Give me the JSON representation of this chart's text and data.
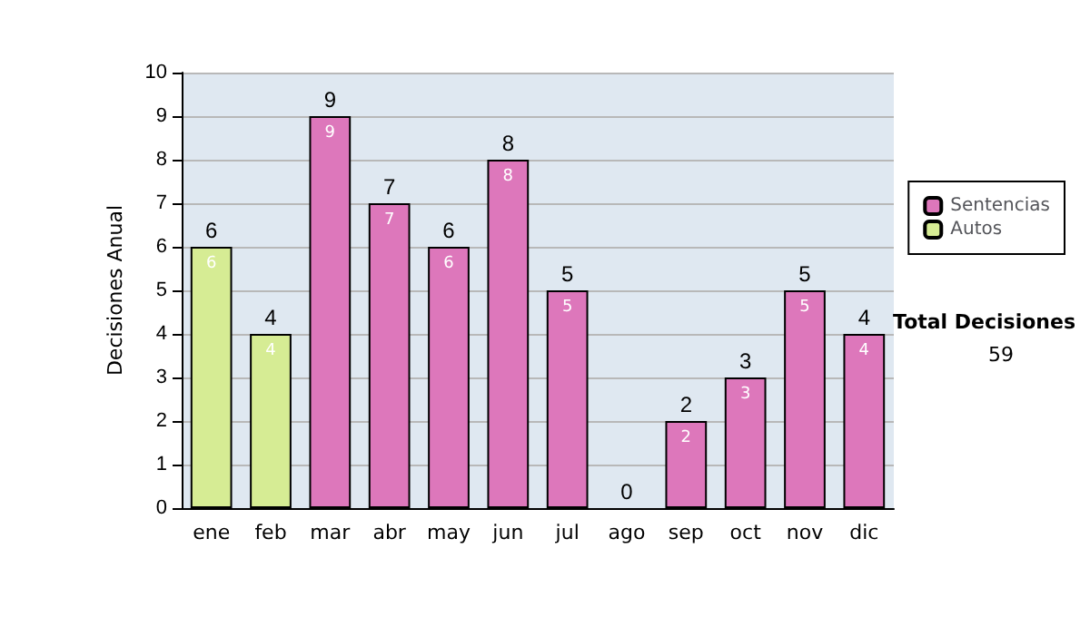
{
  "chart_data": {
    "type": "bar",
    "ylabel": "Decisiones Anual",
    "categories": [
      "ene",
      "feb",
      "mar",
      "abr",
      "may",
      "jun",
      "jul",
      "ago",
      "sep",
      "oct",
      "nov",
      "dic"
    ],
    "series": [
      {
        "name": "Sentencias",
        "color": "#dd77bb",
        "values": [
          null,
          null,
          9,
          7,
          6,
          8,
          5,
          null,
          2,
          3,
          5,
          4
        ]
      },
      {
        "name": "Autos",
        "color": "#d6ec94",
        "values": [
          6,
          4,
          null,
          null,
          null,
          null,
          null,
          null,
          null,
          null,
          null,
          null
        ]
      }
    ],
    "stacked": true,
    "data_labels": true,
    "totals": [
      "6",
      "4",
      "9",
      "7",
      "6",
      "8",
      "5",
      "0",
      "2",
      "3",
      "5",
      "4"
    ],
    "ylim": [
      0,
      10
    ],
    "yticks": [
      0,
      1,
      2,
      3,
      4,
      5,
      6,
      7,
      8,
      9,
      10
    ],
    "grid": "y",
    "legend": "right",
    "annotations": [
      "Total Decisiones",
      "59"
    ]
  }
}
